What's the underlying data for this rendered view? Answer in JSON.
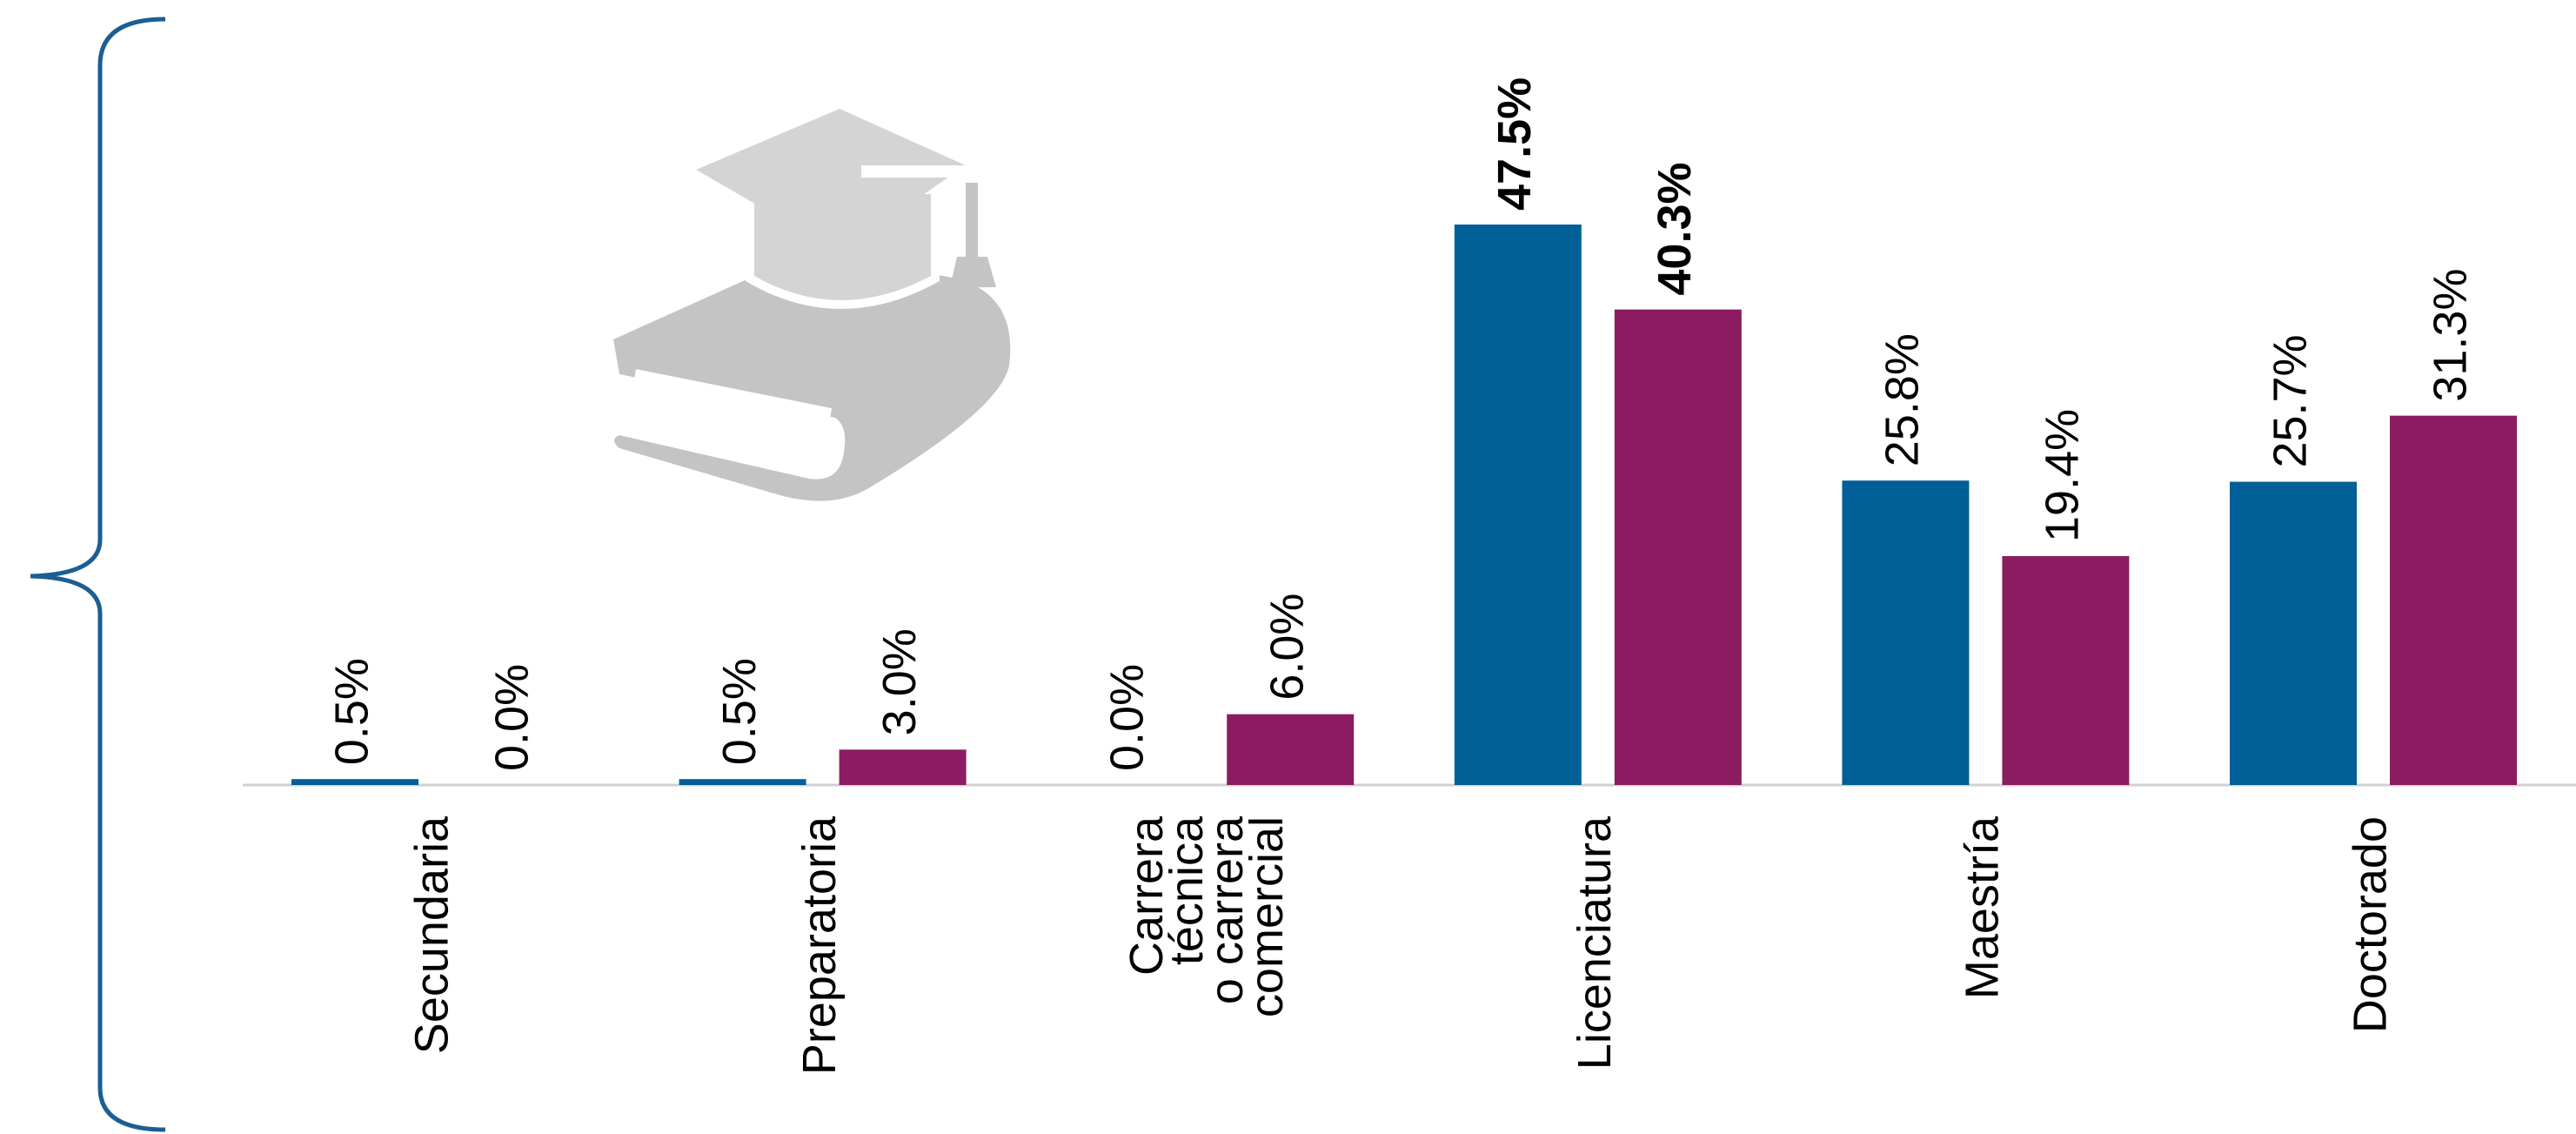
{
  "chart_data": {
    "type": "bar",
    "categories": [
      "Secundaria",
      "Preparatoria",
      "Carrera\ntécnica\no carrera\ncomercial",
      "Licenciatura",
      "Maestría",
      "Doctorado"
    ],
    "series": [
      {
        "color": "#005f96",
        "values": [
          0.5,
          0.5,
          0.0,
          47.5,
          25.8,
          25.7
        ],
        "value_labels": [
          "0.5%",
          "0.5%",
          "0.0%",
          "47.5%",
          "25.8%",
          "25.7%"
        ]
      },
      {
        "color": "#8b1c62",
        "values": [
          0.0,
          3.0,
          6.0,
          40.3,
          19.4,
          31.3
        ],
        "value_labels": [
          "0.0%",
          "3.0%",
          "6.0%",
          "40.3%",
          "19.4%",
          "31.3%"
        ]
      }
    ]
  }
}
